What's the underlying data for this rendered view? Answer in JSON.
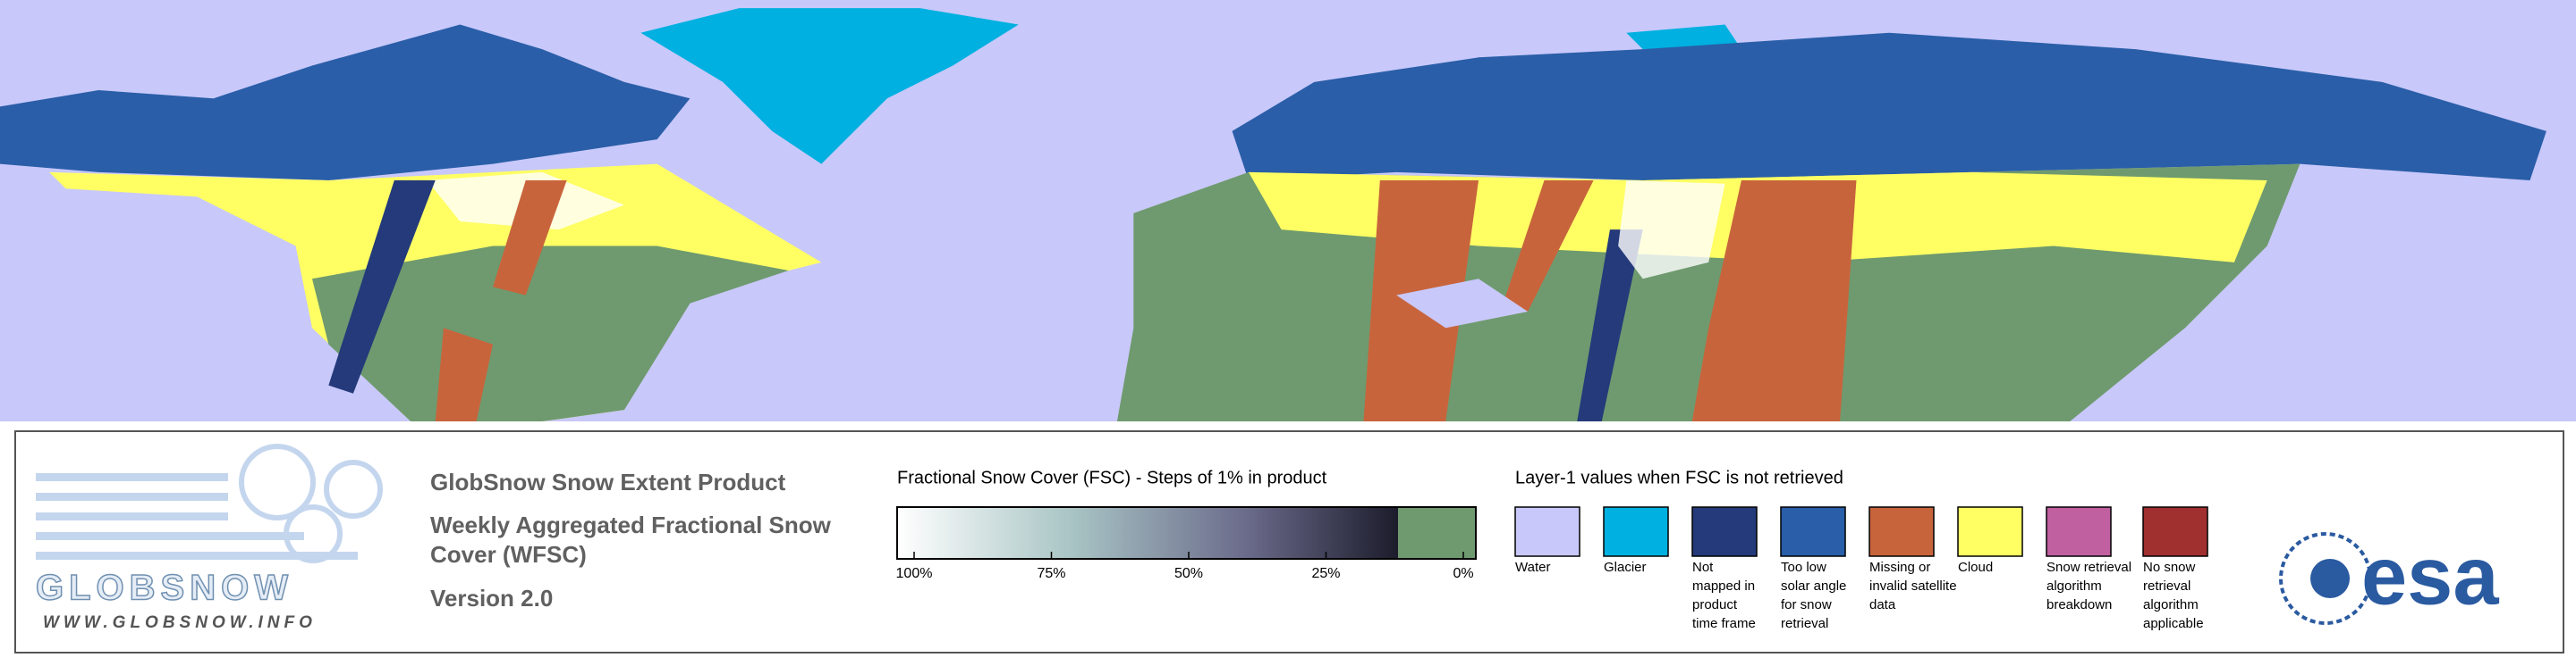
{
  "logo": {
    "name": "GLOBSNOW",
    "url": "WWW.GLOBSNOW.INFO"
  },
  "product": {
    "title": "GlobSnow Snow Extent Product",
    "subtitle_lines": [
      "Weekly Aggregated Fractional Snow",
      "Cover (WFSC)"
    ],
    "version": "Version 2.0"
  },
  "fsc_scale": {
    "title": "Fractional Snow Cover (FSC) - Steps of 1% in product",
    "ticks": [
      {
        "value": 100,
        "label": "100%"
      },
      {
        "value": 75,
        "label": "75%"
      },
      {
        "value": 50,
        "label": "50%"
      },
      {
        "value": 25,
        "label": "25%"
      },
      {
        "value": 0,
        "label": "0%"
      }
    ]
  },
  "layer1": {
    "title": "Layer-1 values when FSC is not retrieved",
    "items": [
      {
        "lines": [
          "Water"
        ],
        "color": "#c8c8fa"
      },
      {
        "lines": [
          "Glacier"
        ],
        "color": "#00b0e0"
      },
      {
        "lines": [
          "Not",
          "mapped in",
          "product",
          "time frame"
        ],
        "color": "#243a7a"
      },
      {
        "lines": [
          "Too low",
          "solar angle",
          "for snow",
          "retrieval"
        ],
        "color": "#2a5ea8"
      },
      {
        "lines": [
          "Missing or",
          "invalid satellite",
          "data"
        ],
        "color": "#c8643c"
      },
      {
        "lines": [
          "Cloud"
        ],
        "color": "#ffff64"
      },
      {
        "lines": [
          "Snow retrieval",
          "algorithm",
          "breakdown"
        ],
        "color": "#c060a0"
      },
      {
        "lines": [
          "No snow",
          "retrieval",
          "algorithm",
          "applicable"
        ],
        "color": "#a03030"
      }
    ]
  },
  "esa": {
    "name": "esa"
  }
}
